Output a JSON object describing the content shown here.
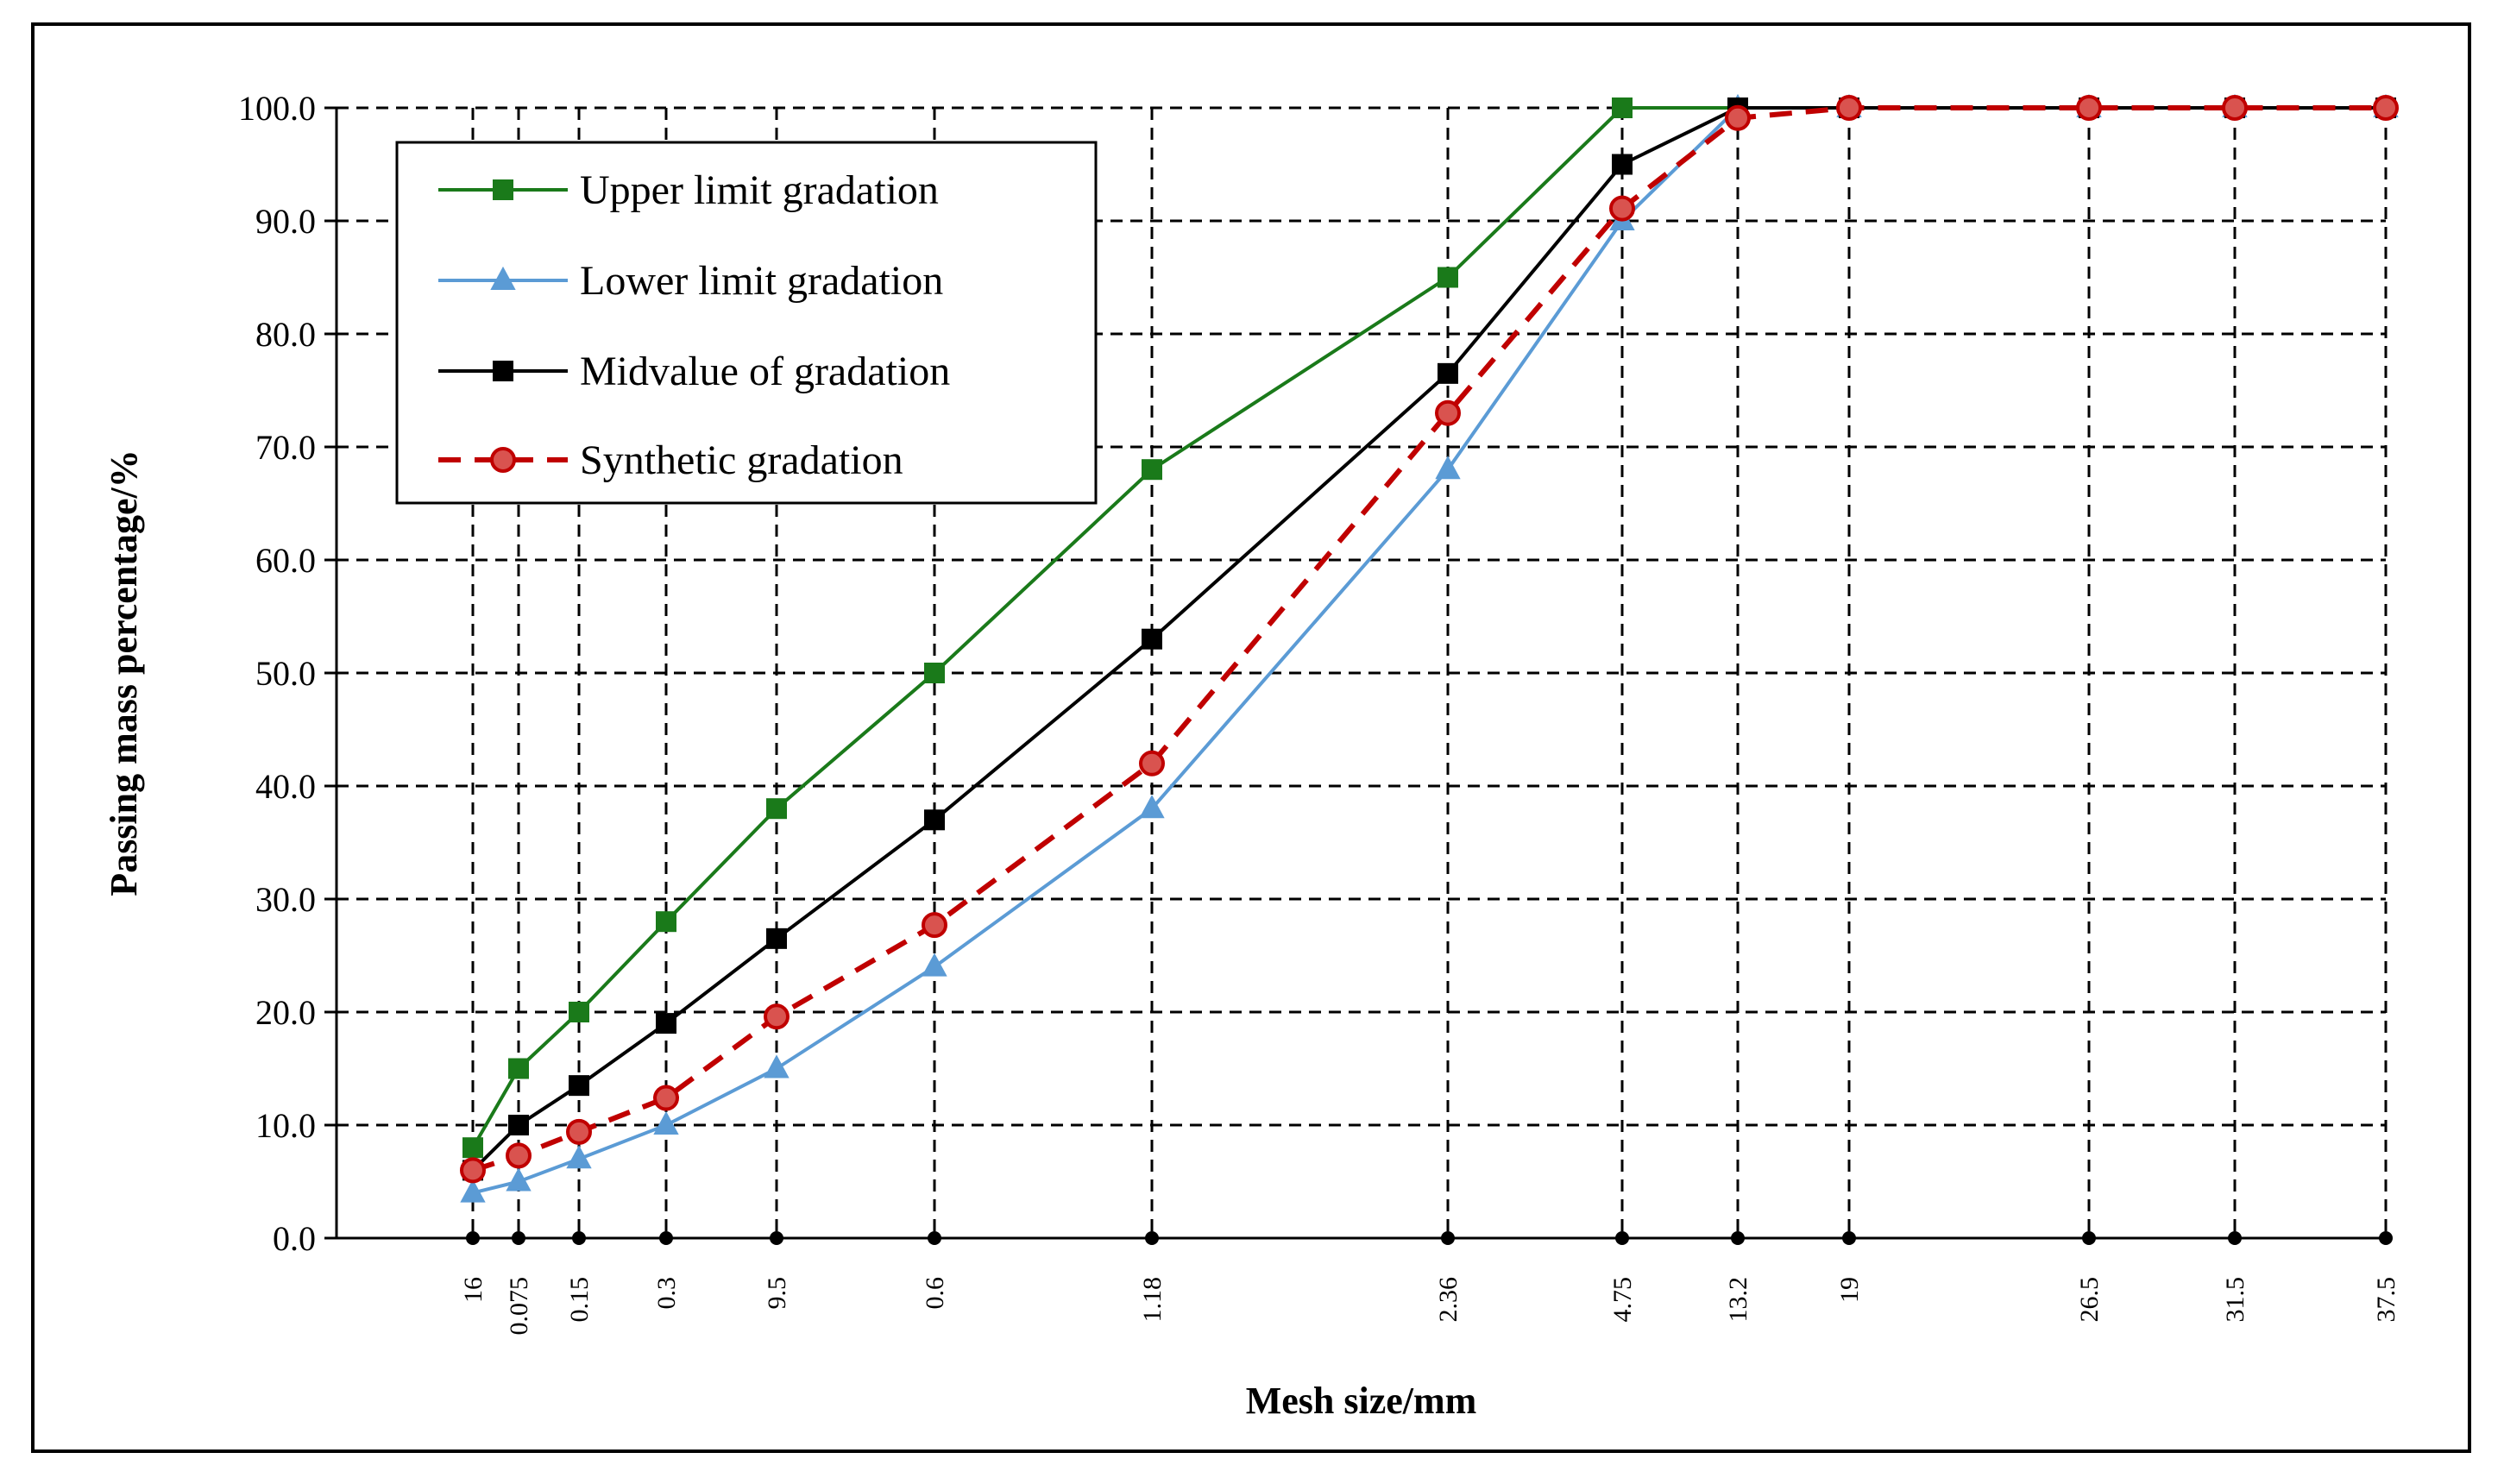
{
  "chart_data": {
    "type": "line",
    "title": "",
    "xlabel": "Mesh size/mm",
    "ylabel": "Passing mass percentage/%",
    "x_scale": "categorical",
    "categories": [
      "16",
      "0.075",
      "0.15",
      "0.3",
      "9.5",
      "0.6",
      "1.18",
      "2.36",
      "4.75",
      "13.2",
      "19",
      "26.5",
      "31.5",
      "37.5"
    ],
    "yticks": [
      "0.0",
      "10.0",
      "20.0",
      "30.0",
      "40.0",
      "50.0",
      "60.0",
      "70.0",
      "80.0",
      "90.0",
      "100.0"
    ],
    "ylim": [
      0,
      100
    ],
    "grid": true,
    "legend": "top-left",
    "series": [
      {
        "name": "Upper limit gradation",
        "color": "#1a7a1a",
        "marker": "square",
        "line_style": "solid",
        "values": [
          8.0,
          15.0,
          20.0,
          28.0,
          38.0,
          50.0,
          68.0,
          85.0,
          100.0,
          100.0,
          100.0,
          100.0,
          100.0,
          100.0
        ]
      },
      {
        "name": "Lower limit gradation",
        "color": "#5b9bd5",
        "marker": "triangle",
        "line_style": "solid",
        "values": [
          4.0,
          5.0,
          7.0,
          10.0,
          15.0,
          24.0,
          38.0,
          68.0,
          90.0,
          100.0,
          100.0,
          100.0,
          100.0,
          100.0
        ]
      },
      {
        "name": "Midvalue of gradation",
        "color": "#000000",
        "marker": "square",
        "line_style": "solid",
        "values": [
          6.0,
          10.0,
          13.5,
          19.0,
          26.5,
          37.0,
          53.0,
          76.5,
          95.0,
          100.0,
          100.0,
          100.0,
          100.0,
          100.0
        ]
      },
      {
        "name": "Synthetic gradation",
        "color": "#c00000",
        "marker": "circle",
        "line_style": "dashed",
        "values": [
          6.0,
          7.3,
          9.4,
          12.4,
          19.6,
          27.7,
          42.0,
          73.0,
          91.1,
          99.1,
          100.0,
          100.0,
          100.0,
          100.0
        ]
      }
    ]
  }
}
